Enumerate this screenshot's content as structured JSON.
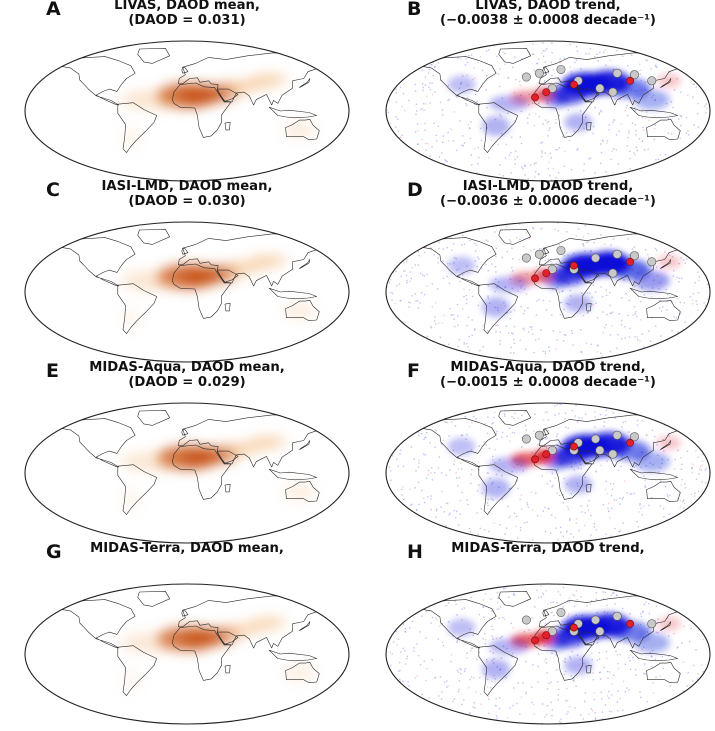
{
  "figure": {
    "panels": [
      {
        "letter": "A",
        "title": "LIVAS, DAOD mean,",
        "subtitle": "(DAOD = 0.031)",
        "kind": "mean",
        "variant": 0
      },
      {
        "letter": "B",
        "title": "LIVAS, DAOD trend,",
        "subtitle": "(−0.0038 ± 0.0008 decade⁻¹)",
        "kind": "trend",
        "variant": 0
      },
      {
        "letter": "C",
        "title": "IASI-LMD, DAOD mean,",
        "subtitle": "(DAOD = 0.030)",
        "kind": "mean",
        "variant": 1
      },
      {
        "letter": "D",
        "title": "IASI-LMD, DAOD trend,",
        "subtitle": "(−0.0036 ± 0.0006 decade⁻¹)",
        "kind": "trend",
        "variant": 1
      },
      {
        "letter": "E",
        "title": "MIDAS-Aqua, DAOD mean,",
        "subtitle": "(DAOD = 0.029)",
        "kind": "mean",
        "variant": 2
      },
      {
        "letter": "F",
        "title": "MIDAS-Aqua, DAOD trend,",
        "subtitle": "(−0.0015 ± 0.0008 decade⁻¹)",
        "kind": "trend",
        "variant": 2
      },
      {
        "letter": "G",
        "title": "MIDAS-Terra, DAOD mean,",
        "subtitle": "",
        "kind": "mean",
        "variant": 3
      },
      {
        "letter": "H",
        "title": "MIDAS-Terra, DAOD trend,",
        "subtitle": "",
        "kind": "trend",
        "variant": 3
      }
    ]
  },
  "colors": {
    "mean_dust": "#c8541a",
    "mean_dust_light": "#f3b67a",
    "trend_negative": "#0a10d8",
    "trend_positive": "#e0202a",
    "coastline": "#2a2a2a",
    "frame": "#222222"
  }
}
